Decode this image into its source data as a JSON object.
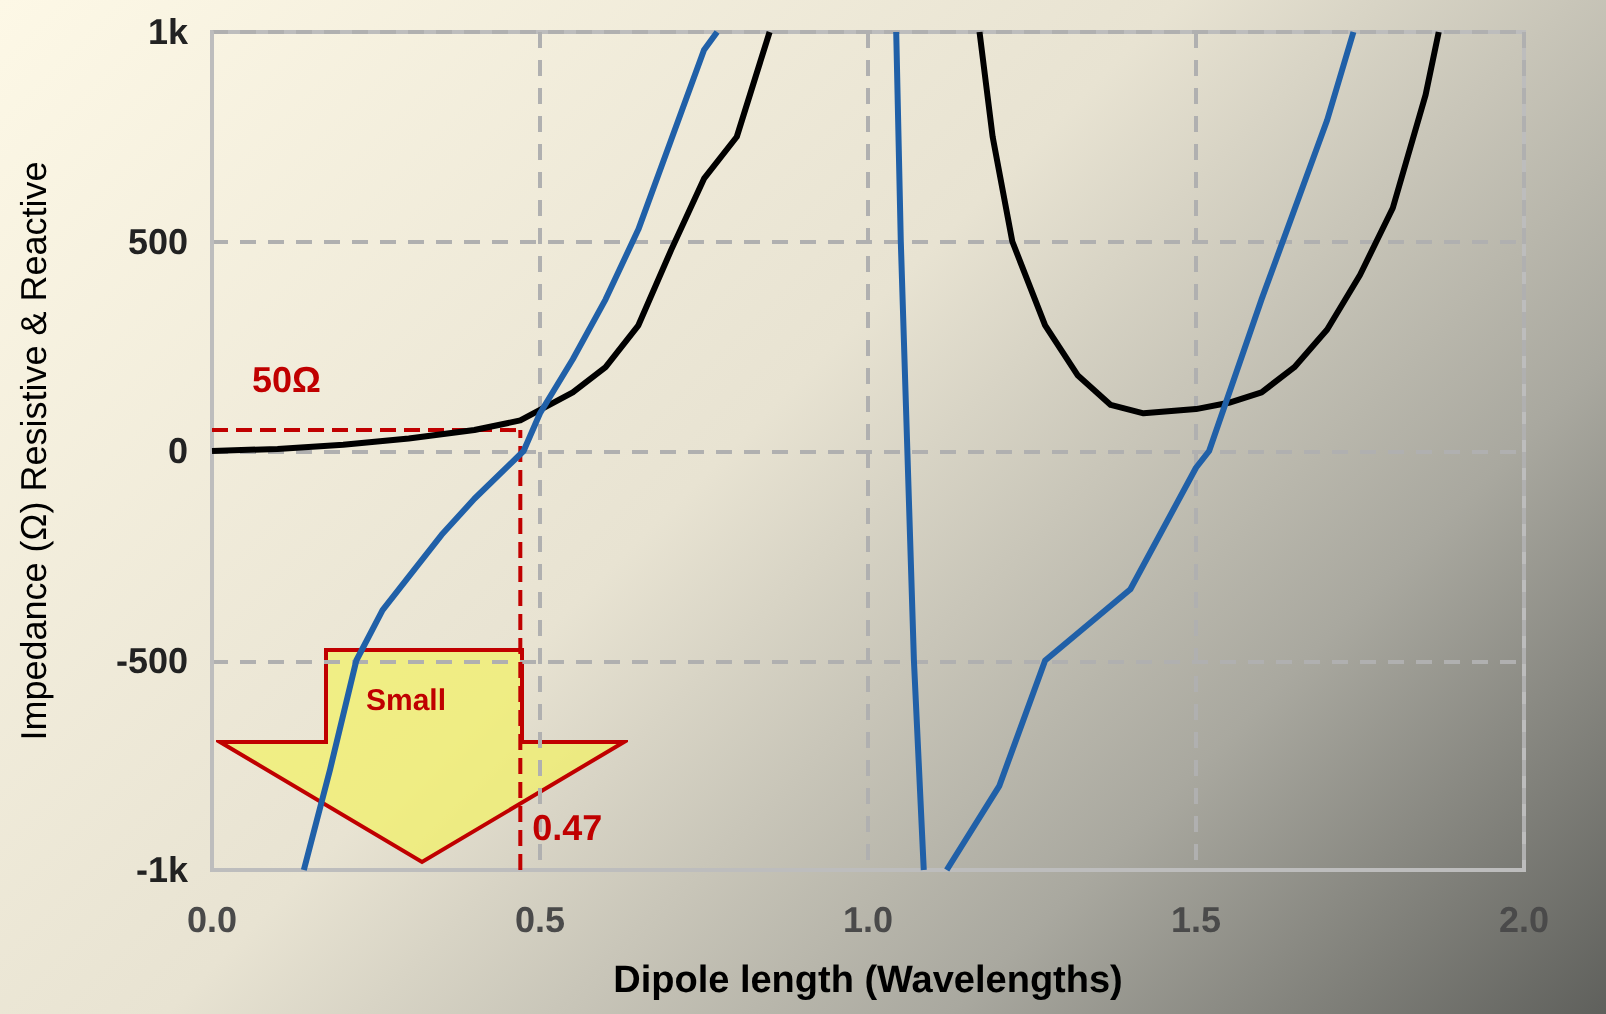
{
  "chart_data": {
    "type": "line",
    "xlabel": "Dipole length (Wavelengths)",
    "ylabel": "Impedance (Ω) Resistive & Reactive",
    "xlim": [
      0,
      2
    ],
    "xticks": [
      {
        "value": 0,
        "label": "0.0"
      },
      {
        "value": 0.5,
        "label": "0.5"
      },
      {
        "value": 1,
        "label": "1.0"
      },
      {
        "value": 1.5,
        "label": "1.5"
      },
      {
        "value": 2,
        "label": "2.0"
      }
    ],
    "ylim": [
      -1000,
      1000
    ],
    "yticks": [
      {
        "value": -1000,
        "label": "-1k"
      },
      -500,
      0,
      500,
      {
        "value": 1000,
        "label": "1k"
      }
    ],
    "grid": true,
    "marker": "none",
    "line_style": "solid",
    "series": [
      {
        "color": "#000000",
        "x": [
          0,
          0.1,
          0.2,
          0.3,
          0.4,
          0.47,
          0.55,
          0.6,
          0.65,
          0.7,
          0.75,
          0.8,
          0.85
        ],
        "values": [
          0,
          5,
          15,
          30,
          50,
          73,
          140,
          200,
          300,
          480,
          650,
          750,
          1000
        ]
      },
      {
        "color": "#000000",
        "x": [
          1.17,
          1.19,
          1.22,
          1.27,
          1.32,
          1.37,
          1.42,
          1.5,
          1.55,
          1.6,
          1.65,
          1.7,
          1.75,
          1.8,
          1.85,
          1.87
        ],
        "values": [
          1000,
          750,
          500,
          300,
          180,
          110,
          90,
          100,
          115,
          140,
          200,
          290,
          420,
          580,
          850,
          1000
        ]
      },
      {
        "color": "#2060a8",
        "x": [
          0.14,
          0.18,
          0.22,
          0.26,
          0.3,
          0.35,
          0.4,
          0.45,
          0.475,
          0.5,
          0.55,
          0.6,
          0.65,
          0.7,
          0.75,
          0.77
        ],
        "values": [
          -1000,
          -760,
          -500,
          -380,
          -300,
          -200,
          -114,
          -38,
          0,
          90,
          219,
          362,
          529,
          743,
          957,
          1000
        ]
      },
      {
        "color": "#2060a8",
        "x": [
          1.043,
          1.05,
          1.06,
          1.07,
          1.085
        ],
        "values": [
          1000,
          500,
          0,
          -500,
          -1000
        ]
      },
      {
        "color": "#2060a8",
        "x": [
          1.12,
          1.2,
          1.27,
          1.4,
          1.5,
          1.52,
          1.6,
          1.7,
          1.74
        ],
        "values": [
          -1000,
          -800,
          -500,
          -330,
          -40,
          0,
          362,
          790,
          1000
        ]
      }
    ],
    "ref_lines": [
      {
        "axis": "y",
        "value": 50,
        "label": "50Ω",
        "color": "#c00000",
        "line_style": "dashed"
      },
      {
        "axis": "x",
        "value": 0.47,
        "label": "0.47",
        "color": "#c00000",
        "line_style": "dashed"
      }
    ],
    "annotations": [
      "Small"
    ]
  }
}
